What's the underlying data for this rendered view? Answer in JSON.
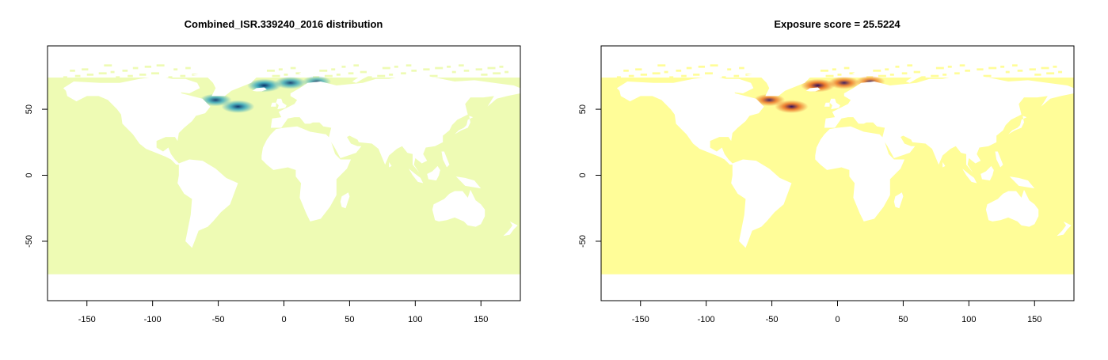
{
  "chart_data": [
    {
      "type": "heatmap",
      "title": "Combined_ISR.339240_2016 distribution",
      "xlim": [
        -180,
        180
      ],
      "ylim": [
        -95,
        98
      ],
      "x_ticks": [
        -150,
        -100,
        -50,
        0,
        50,
        100,
        150
      ],
      "y_ticks": [
        -50,
        0,
        50
      ],
      "xlabel": "",
      "ylabel": "",
      "grid": false,
      "ocean_color": "#eefbb4",
      "land_color": "#ffffff",
      "high_color": "#08306b",
      "mid_color": "#2aa0be",
      "hotspots": [
        {
          "lon": -15,
          "lat": 68,
          "intensity": 1.0
        },
        {
          "lon": 5,
          "lat": 70,
          "intensity": 0.75
        },
        {
          "lon": 25,
          "lat": 71,
          "intensity": 0.5
        },
        {
          "lon": -52,
          "lat": 57,
          "intensity": 0.8
        },
        {
          "lon": -35,
          "lat": 52,
          "intensity": 0.9
        }
      ]
    },
    {
      "type": "heatmap",
      "title": "Exposure score = 25.5224",
      "xlim": [
        -180,
        180
      ],
      "ylim": [
        -95,
        98
      ],
      "x_ticks": [
        -150,
        -100,
        -50,
        0,
        50,
        100,
        150
      ],
      "y_ticks": [
        -50,
        0,
        50
      ],
      "xlabel": "",
      "ylabel": "",
      "grid": false,
      "ocean_color": "#fffd98",
      "land_color": "#ffffff",
      "high_color": "#2a0a5e",
      "mid_color": "#e8641a",
      "hotspots": [
        {
          "lon": -15,
          "lat": 68,
          "intensity": 1.0
        },
        {
          "lon": 5,
          "lat": 70,
          "intensity": 0.8
        },
        {
          "lon": 25,
          "lat": 71,
          "intensity": 0.55
        },
        {
          "lon": -52,
          "lat": 57,
          "intensity": 0.75
        },
        {
          "lon": -35,
          "lat": 52,
          "intensity": 0.95
        }
      ]
    }
  ]
}
